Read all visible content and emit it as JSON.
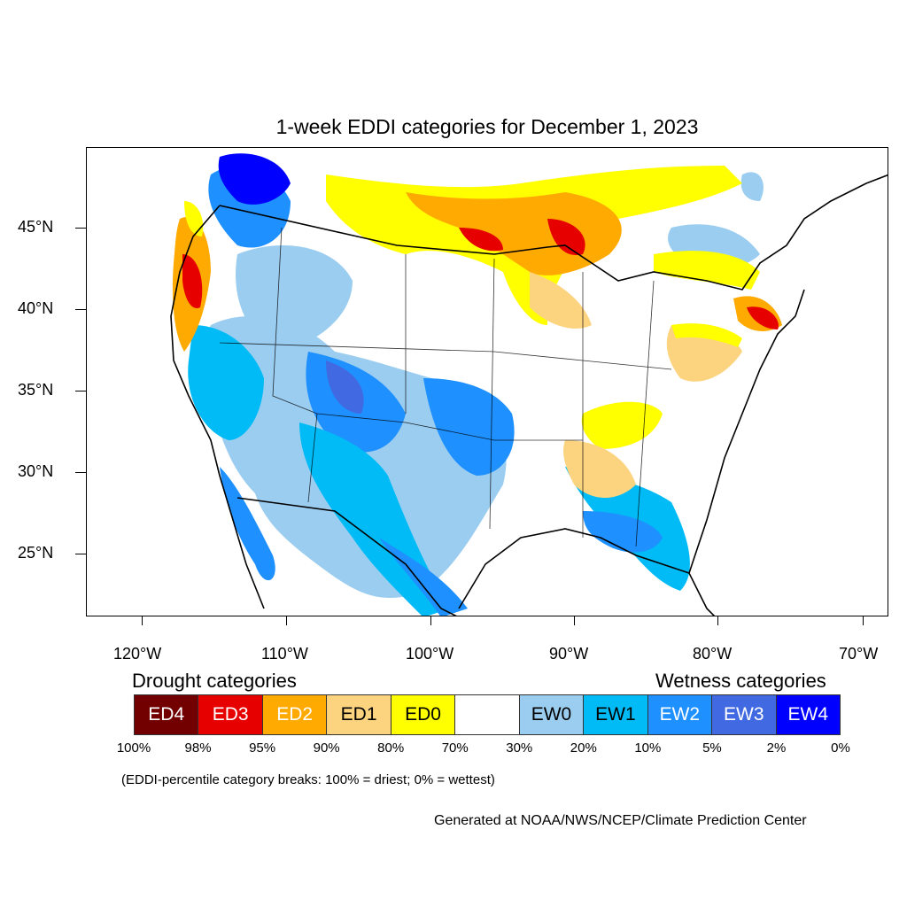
{
  "map": {
    "title": "1-week EDDI categories for December 1, 2023",
    "lat_labels": [
      "45°N",
      "40°N",
      "35°N",
      "30°N",
      "25°N"
    ],
    "lon_labels": [
      "120°W",
      "110°W",
      "100°W",
      "90°W",
      "80°W",
      "70°W"
    ]
  },
  "legend": {
    "drought_heading": "Drought categories",
    "wetness_heading": "Wetness categories",
    "categories": [
      {
        "label": "ED4",
        "color": "#730000",
        "text_color": "#ffffff"
      },
      {
        "label": "ED3",
        "color": "#e60000",
        "text_color": "#ffffff"
      },
      {
        "label": "ED2",
        "color": "#ffaa00",
        "text_color": "#ffffff"
      },
      {
        "label": "ED1",
        "color": "#fcd37f",
        "text_color": "#000000"
      },
      {
        "label": "ED0",
        "color": "#ffff00",
        "text_color": "#000000"
      },
      {
        "label": "",
        "color": "#ffffff",
        "text_color": "#000000"
      },
      {
        "label": "EW0",
        "color": "#9bcdf0",
        "text_color": "#000000"
      },
      {
        "label": "EW1",
        "color": "#00bbf5",
        "text_color": "#000000"
      },
      {
        "label": "EW2",
        "color": "#1e90ff",
        "text_color": "#ffffff"
      },
      {
        "label": "EW3",
        "color": "#4169e1",
        "text_color": "#ffffff"
      },
      {
        "label": "EW4",
        "color": "#0000ff",
        "text_color": "#ffffff"
      }
    ],
    "breaks": [
      "100%",
      "98%",
      "95%",
      "90%",
      "80%",
      "70%",
      "30%",
      "20%",
      "10%",
      "5%",
      "2%",
      "0%"
    ],
    "note": "(EDDI-percentile category breaks: 100% = driest; 0% = wettest)"
  },
  "credit": "Generated at NOAA/NWS/NCEP/Climate Prediction Center"
}
